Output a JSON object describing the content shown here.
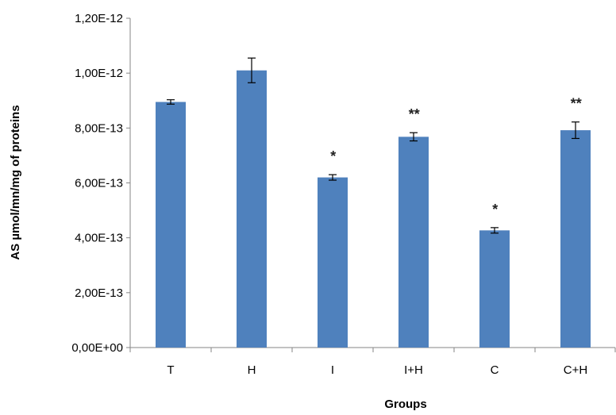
{
  "chart_data": {
    "type": "bar",
    "xlabel": "Groups",
    "ylabel": "AS µmol/mn/mg of proteins",
    "categories": [
      "T",
      "H",
      "I",
      "I+H",
      "C",
      "C+H"
    ],
    "values": [
      8.95e-13,
      1.01e-12,
      6.2e-13,
      7.68e-13,
      4.27e-13,
      7.92e-13
    ],
    "errors": [
      8e-15,
      4.5e-14,
      1e-14,
      1.5e-14,
      1e-14,
      3e-14
    ],
    "significance": [
      "",
      "",
      "*",
      "**",
      "*",
      "**"
    ],
    "ylim": [
      0,
      1.2e-12
    ],
    "yticks": [
      0,
      2e-13,
      4e-13,
      6e-13,
      8e-13,
      1e-12,
      1.2e-12
    ],
    "ytick_labels": [
      "0,00E+00",
      "2,00E-13",
      "4,00E-13",
      "6,00E-13",
      "8,00E-13",
      "1,00E-12",
      "1,20E-12"
    ],
    "bar_color": "#4F81BD",
    "grid": false,
    "legend": "none"
  }
}
